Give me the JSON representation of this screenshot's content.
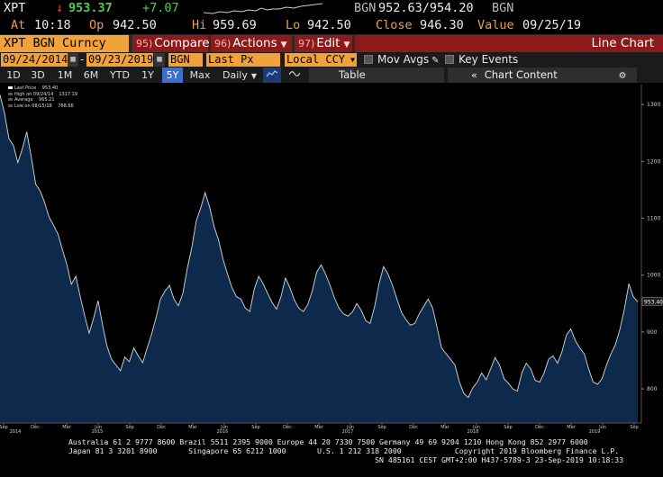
{
  "quote": {
    "ticker": "XPT",
    "arrow": "↓",
    "price": "953.37",
    "change": "+7.07",
    "source": "BGN",
    "bid_ask": "952.63/954.20",
    "source2": "BGN",
    "at_label": "At",
    "at_value": "10:18",
    "op_label": "Op",
    "op_value": "942.50",
    "hi_label": "Hi",
    "hi_value": "959.69",
    "lo_label": "Lo",
    "lo_value": "942.50",
    "close_label": "Close",
    "close_value": "946.30",
    "value_label": "Value",
    "value_date": "09/25/19"
  },
  "command_bar": {
    "security": "XPT BGN Curncy",
    "compare": {
      "num": "95)",
      "label": "Compare"
    },
    "actions": {
      "num": "96)",
      "label": "Actions"
    },
    "edit": {
      "num": "97)",
      "label": "Edit"
    },
    "title": "Line Chart"
  },
  "params": {
    "start_date": "09/24/2014",
    "end_date": "09/23/2019",
    "source": "BGN",
    "field": "Last Px",
    "currency": "Local CCY",
    "mov_avgs": "Mov Avgs",
    "key_events": "Key Events"
  },
  "ranges": {
    "items": [
      "1D",
      "3D",
      "1M",
      "6M",
      "YTD",
      "1Y",
      "5Y",
      "Max"
    ],
    "active": "5Y",
    "frequency": "Daily",
    "table": "Table",
    "chart_content": "Chart Content"
  },
  "legend": {
    "items": [
      {
        "label": "Last Price",
        "value": "953.40"
      },
      {
        "label": "High on 09/24/14",
        "value": "1317.19"
      },
      {
        "label": "Average",
        "value": "965.21"
      },
      {
        "label": "Low on 08/15/18",
        "value": "768.66"
      }
    ]
  },
  "chart_data": {
    "type": "area",
    "y_ticks": [
      800,
      900,
      1000,
      1100,
      1200,
      1300
    ],
    "ylim": [
      740,
      1335
    ],
    "last_price_label": "953.40",
    "x_tick_labels": [
      "Sep",
      "Dec",
      "Mar",
      "Jun",
      "Sep",
      "Dec",
      "Mar",
      "Jun",
      "Sep",
      "Dec",
      "Mar",
      "Jun",
      "Sep",
      "Dec",
      "Mar",
      "Jun",
      "Sep",
      "Dec",
      "Mar",
      "Jun",
      "Sep"
    ],
    "year_labels": [
      "2014",
      "2015",
      "2016",
      "2017",
      "2018",
      "2019"
    ],
    "series": [
      {
        "values": [
          1317,
          1285,
          1240,
          1228,
          1198,
          1222,
          1252,
          1208,
          1160,
          1148,
          1128,
          1102,
          1088,
          1072,
          1045,
          1018,
          984,
          998,
          962,
          928,
          898,
          925,
          955,
          912,
          875,
          852,
          842,
          832,
          856,
          848,
          872,
          858,
          846,
          872,
          896,
          926,
          958,
          972,
          982,
          958,
          946,
          968,
          1012,
          1048,
          1095,
          1118,
          1145,
          1120,
          1085,
          1062,
          1028,
          1002,
          978,
          962,
          958,
          942,
          936,
          975,
          998,
          985,
          968,
          952,
          940,
          962,
          995,
          978,
          956,
          942,
          936,
          948,
          972,
          1005,
          1018,
          1002,
          982,
          960,
          942,
          932,
          928,
          935,
          950,
          938,
          920,
          915,
          945,
          985,
          1015,
          1002,
          982,
          958,
          935,
          922,
          912,
          915,
          932,
          945,
          958,
          942,
          908,
          872,
          862,
          852,
          842,
          812,
          792,
          785,
          802,
          812,
          828,
          816,
          835,
          855,
          842,
          818,
          810,
          800,
          796,
          828,
          845,
          835,
          815,
          812,
          828,
          852,
          858,
          845,
          865,
          895,
          905,
          885,
          872,
          862,
          835,
          812,
          808,
          818,
          842,
          862,
          878,
          905,
          940,
          985,
          962,
          953
        ]
      }
    ]
  },
  "footer": {
    "line1": "Australia 61 2 9777 8600 Brazil 5511 2395 9000 Europe 44 20 7330 7500 Germany 49 69 9204 1210 Hong Kong 852 2977 6000",
    "line2": "Japan 81 3 3201 8900       Singapore 65 6212 1000       U.S. 1 212 318 2000            Copyright 2019 Bloomberg Finance L.P.",
    "line3": "                                                                     SN 485161 CEST GMT+2:00 H437-5789-3 23-Sep-2019 10:18:33"
  },
  "colors": {
    "amber": "#f2a23a",
    "red_button": "#8b1a1a",
    "area_fill": "#0d2a4d",
    "line": "#d8d8d8",
    "active_range": "#3a6fd0"
  }
}
